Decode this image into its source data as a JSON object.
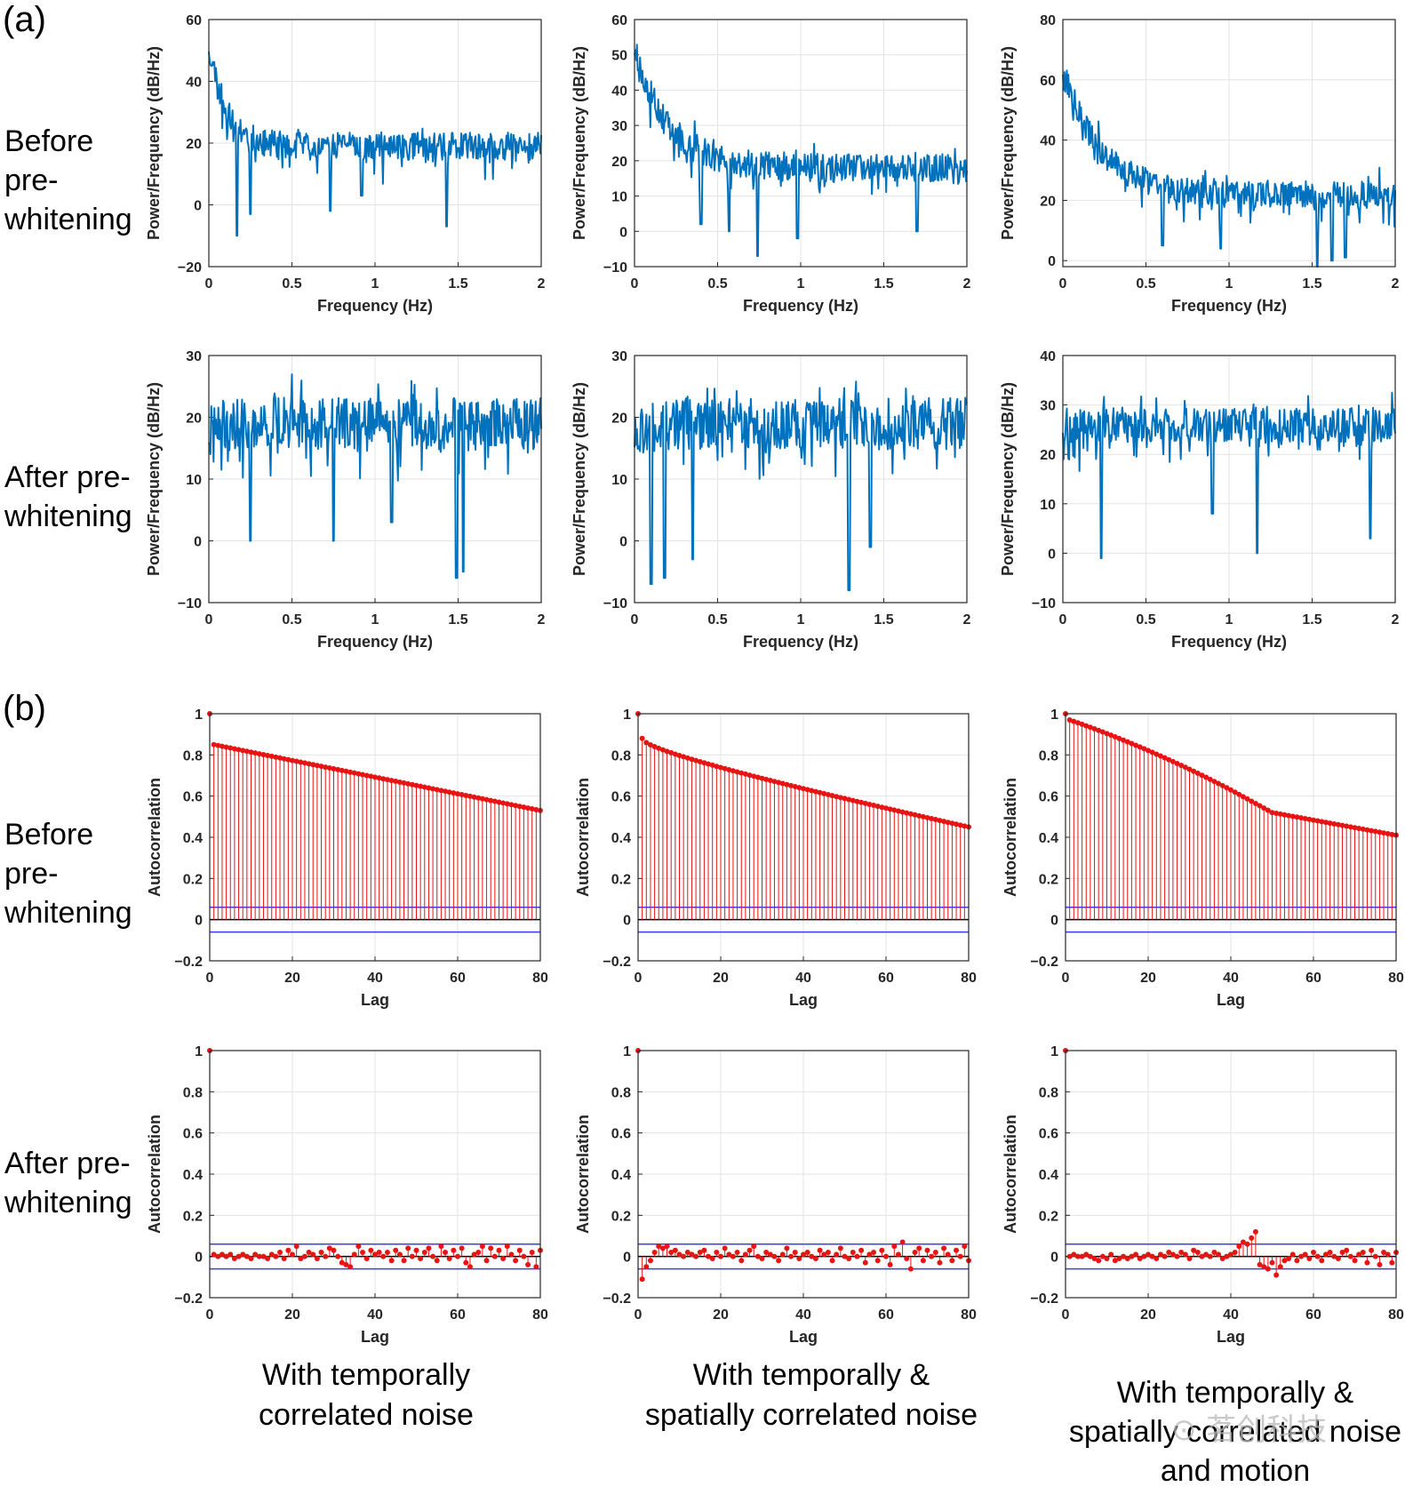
{
  "figure": {
    "panel_a": "(a)",
    "panel_b": "(b)",
    "row_labels": [
      [
        "Before",
        "pre-",
        "whitening"
      ],
      [
        "After pre-",
        "whitening"
      ],
      [
        "Before",
        "pre-",
        "whitening"
      ],
      [
        "After pre-",
        "whitening"
      ]
    ],
    "column_labels": [
      [
        "With temporally",
        "correlated noise"
      ],
      [
        "With temporally &",
        "spatially correlated noise"
      ],
      [
        "With temporally &",
        "spatially correlated noise",
        "and motion"
      ]
    ],
    "watermark": "⊙ 茗创科技"
  },
  "chart_data": [
    {
      "id": "a-r1-c1",
      "type": "line",
      "xlabel": "Frequency (Hz)",
      "ylabel": "Power/Frequency (dB/Hz)",
      "xlim": [
        0,
        2
      ],
      "ylim": [
        -20,
        60
      ],
      "xticks": [
        0,
        0.5,
        1,
        1.5,
        2
      ],
      "xtick_labels": [
        "0",
        "0.5",
        "1",
        "1.5",
        "2"
      ],
      "yticks": [
        -20,
        0,
        20,
        40,
        60
      ],
      "ytick_labels": [
        "−20",
        "0",
        "20",
        "40",
        "60"
      ],
      "start": 52,
      "floor": 19,
      "decay": 0.1,
      "noise": 4.5,
      "seed": 11,
      "dips": [
        [
          0.17,
          -10
        ],
        [
          0.25,
          -3
        ],
        [
          0.73,
          -2
        ],
        [
          1.43,
          -7
        ],
        [
          0.92,
          3
        ]
      ]
    },
    {
      "id": "a-r1-c2",
      "type": "line",
      "xlabel": "Frequency (Hz)",
      "ylabel": "Power/Frequency (dB/Hz)",
      "xlim": [
        0,
        2
      ],
      "ylim": [
        -10,
        60
      ],
      "xticks": [
        0,
        0.5,
        1,
        1.5,
        2
      ],
      "xtick_labels": [
        "0",
        "0.5",
        "1",
        "1.5",
        "2"
      ],
      "yticks": [
        -10,
        0,
        10,
        20,
        30,
        40,
        50,
        60
      ],
      "ytick_labels": [
        "−10",
        "0",
        "10",
        "20",
        "30",
        "40",
        "50",
        "60"
      ],
      "start": 52,
      "floor": 18,
      "decay": 0.2,
      "noise": 4,
      "seed": 23,
      "dips": [
        [
          0.74,
          -7
        ],
        [
          0.98,
          -2
        ],
        [
          0.57,
          0
        ],
        [
          1.7,
          0
        ],
        [
          0.4,
          2
        ]
      ]
    },
    {
      "id": "a-r1-c3",
      "type": "line",
      "xlabel": "Frequency (Hz)",
      "ylabel": "Power/Frequency (dB/Hz)",
      "xlim": [
        0,
        2
      ],
      "ylim": [
        -2,
        80
      ],
      "xticks": [
        0,
        0.5,
        1,
        1.5,
        2
      ],
      "xtick_labels": [
        "0",
        "0.5",
        "1",
        "1.5",
        "2"
      ],
      "yticks": [
        0,
        20,
        40,
        60,
        80
      ],
      "ytick_labels": [
        "0",
        "20",
        "40",
        "60",
        "80"
      ],
      "start": 64,
      "floor": 22,
      "decay": 0.22,
      "noise": 4.5,
      "seed": 37,
      "dips": [
        [
          1.53,
          -2
        ],
        [
          1.7,
          1
        ],
        [
          1.62,
          0
        ],
        [
          0.95,
          4
        ],
        [
          0.6,
          5
        ]
      ]
    },
    {
      "id": "a-r2-c1",
      "type": "line",
      "xlabel": "Frequency (Hz)",
      "ylabel": "Power/Frequency (dB/Hz)",
      "xlim": [
        0,
        2
      ],
      "ylim": [
        -10,
        30
      ],
      "xticks": [
        0,
        0.5,
        1,
        1.5,
        2
      ],
      "xtick_labels": [
        "0",
        "0.5",
        "1",
        "1.5",
        "2"
      ],
      "yticks": [
        -10,
        0,
        10,
        20,
        30
      ],
      "ytick_labels": [
        "−10",
        "0",
        "10",
        "20",
        "30"
      ],
      "start": 18,
      "floor": 19,
      "decay": 0.1,
      "noise": 4.2,
      "seed": 41,
      "dips": [
        [
          1.49,
          -6
        ],
        [
          1.53,
          -5
        ],
        [
          0.25,
          0
        ],
        [
          0.75,
          0
        ],
        [
          1.1,
          3
        ]
      ]
    },
    {
      "id": "a-r2-c2",
      "type": "line",
      "xlabel": "Frequency (Hz)",
      "ylabel": "Power/Frequency (dB/Hz)",
      "xlim": [
        0,
        2
      ],
      "ylim": [
        -10,
        30
      ],
      "xticks": [
        0,
        0.5,
        1,
        1.5,
        2
      ],
      "xtick_labels": [
        "0",
        "0.5",
        "1",
        "1.5",
        "2"
      ],
      "yticks": [
        -10,
        0,
        10,
        20,
        30
      ],
      "ytick_labels": [
        "−10",
        "0",
        "10",
        "20",
        "30"
      ],
      "start": 18,
      "floor": 19,
      "decay": 0.1,
      "noise": 4.2,
      "seed": 53,
      "dips": [
        [
          0.1,
          -7
        ],
        [
          0.18,
          -6
        ],
        [
          1.29,
          -8
        ],
        [
          0.35,
          -3
        ],
        [
          1.42,
          -1
        ]
      ]
    },
    {
      "id": "a-r2-c3",
      "type": "line",
      "xlabel": "Frequency (Hz)",
      "ylabel": "Power/Frequency (dB/Hz)",
      "xlim": [
        0,
        2
      ],
      "ylim": [
        -10,
        40
      ],
      "xticks": [
        0,
        0.5,
        1,
        1.5,
        2
      ],
      "xtick_labels": [
        "0",
        "0.5",
        "1",
        "1.5",
        "2"
      ],
      "yticks": [
        -10,
        0,
        10,
        20,
        30,
        40
      ],
      "ytick_labels": [
        "−10",
        "0",
        "10",
        "20",
        "30",
        "40"
      ],
      "start": 26,
      "floor": 26,
      "decay": 0.1,
      "noise": 3.5,
      "seed": 67,
      "dips": [
        [
          0.23,
          -1
        ],
        [
          1.17,
          0
        ],
        [
          1.85,
          3
        ],
        [
          0.9,
          8
        ]
      ]
    },
    {
      "id": "b-r1-c1",
      "type": "stem",
      "xlabel": "Lag",
      "ylabel": "Autocorrelation",
      "xlim": [
        0,
        80
      ],
      "ylim": [
        -0.2,
        1
      ],
      "xticks": [
        0,
        20,
        40,
        60,
        80
      ],
      "xtick_labels": [
        "0",
        "20",
        "40",
        "60",
        "80"
      ],
      "yticks": [
        -0.2,
        0,
        0.2,
        0.4,
        0.6,
        0.8,
        1
      ],
      "ytick_labels": [
        "−0.2",
        "0",
        "0.2",
        "0.4",
        "0.6",
        "0.8",
        "1"
      ],
      "bound": 0.06,
      "lag0": 1,
      "lag1": 0.85,
      "lag80": 0.53,
      "curve": 0,
      "knee": null
    },
    {
      "id": "b-r1-c2",
      "type": "stem",
      "xlabel": "Lag",
      "ylabel": "Autocorrelation",
      "xlim": [
        0,
        80
      ],
      "ylim": [
        -0.2,
        1
      ],
      "xticks": [
        0,
        20,
        40,
        60,
        80
      ],
      "xtick_labels": [
        "0",
        "20",
        "40",
        "60",
        "80"
      ],
      "yticks": [
        -0.2,
        0,
        0.2,
        0.4,
        0.6,
        0.8,
        1
      ],
      "ytick_labels": [
        "−0.2",
        "0",
        "0.2",
        "0.4",
        "0.6",
        "0.8",
        "1"
      ],
      "bound": 0.06,
      "lag0": 1,
      "lag1": 0.88,
      "lag80": 0.45,
      "curve": 0.35,
      "knee": null
    },
    {
      "id": "b-r1-c3",
      "type": "stem",
      "xlabel": "Lag",
      "ylabel": "Autocorrelation",
      "xlim": [
        0,
        80
      ],
      "ylim": [
        -0.2,
        1
      ],
      "xticks": [
        0,
        20,
        40,
        60,
        80
      ],
      "xtick_labels": [
        "0",
        "20",
        "40",
        "60",
        "80"
      ],
      "yticks": [
        -0.2,
        0,
        0.2,
        0.4,
        0.6,
        0.8,
        1
      ],
      "ytick_labels": [
        "−0.2",
        "0",
        "0.2",
        "0.4",
        "0.6",
        "0.8",
        "1"
      ],
      "bound": 0.06,
      "lag0": 1,
      "lag1": 0.97,
      "lag80": 0.41,
      "curve": 0.2,
      "knee": 48
    },
    {
      "id": "b-r2-c1",
      "type": "stem",
      "xlabel": "Lag",
      "ylabel": "Autocorrelation",
      "xlim": [
        0,
        80
      ],
      "ylim": [
        -0.2,
        1
      ],
      "xticks": [
        0,
        20,
        40,
        60,
        80
      ],
      "xtick_labels": [
        "0",
        "20",
        "40",
        "60",
        "80"
      ],
      "yticks": [
        -0.2,
        0,
        0.2,
        0.4,
        0.6,
        0.8,
        1
      ],
      "ytick_labels": [
        "−0.2",
        "0",
        "0.2",
        "0.4",
        "0.6",
        "0.8",
        "1"
      ],
      "bound": 0.06,
      "lag0": 1,
      "values": [
        0.01,
        0.0,
        0.01,
        0.0,
        0.01,
        -0.01,
        0.0,
        0.01,
        0.0,
        -0.01,
        0.01,
        0.0,
        0.0,
        -0.01,
        0.01,
        0.0,
        0.02,
        -0.01,
        0.03,
        0.01,
        0.05,
        -0.01,
        0.0,
        0.02,
        0.01,
        -0.01,
        0.02,
        0.0,
        0.04,
        0.03,
        0.0,
        -0.03,
        -0.04,
        -0.05,
        0.01,
        0.05,
        0.02,
        -0.01,
        0.03,
        0.01,
        0.02,
        0.0,
        0.02,
        -0.02,
        0.03,
        0.01,
        -0.02,
        0.04,
        0.0,
        0.03,
        -0.01,
        0.02,
        0.04,
        0.0,
        -0.02,
        0.05,
        0.02,
        -0.01,
        0.03,
        0.0,
        0.04,
        -0.03,
        -0.05,
        0.01,
        0.02,
        0.05,
        -0.02,
        0.04,
        0.0,
        0.03,
        -0.01,
        0.05,
        0.01,
        -0.02,
        0.03,
        0.0,
        -0.04,
        0.02,
        -0.05,
        0.03
      ]
    },
    {
      "id": "b-r2-c2",
      "type": "stem",
      "xlabel": "Lag",
      "ylabel": "Autocorrelation",
      "xlim": [
        0,
        80
      ],
      "ylim": [
        -0.2,
        1
      ],
      "xticks": [
        0,
        20,
        40,
        60,
        80
      ],
      "xtick_labels": [
        "0",
        "20",
        "40",
        "60",
        "80"
      ],
      "yticks": [
        -0.2,
        0,
        0.2,
        0.4,
        0.6,
        0.8,
        1
      ],
      "ytick_labels": [
        "−0.2",
        "0",
        "0.2",
        "0.4",
        "0.6",
        "0.8",
        "1"
      ],
      "bound": 0.06,
      "lag0": 1,
      "values": [
        -0.11,
        -0.05,
        -0.02,
        0.02,
        0.05,
        0.04,
        0.05,
        0.02,
        0.03,
        0.01,
        0.0,
        0.02,
        0.01,
        0.0,
        0.02,
        0.03,
        0.0,
        -0.01,
        0.02,
        0.0,
        0.04,
        0.01,
        0.0,
        0.02,
        -0.02,
        0.01,
        0.03,
        0.05,
        0.0,
        -0.01,
        0.02,
        0.01,
        0.0,
        -0.02,
        0.01,
        0.04,
        0.0,
        0.02,
        -0.01,
        0.01,
        0.02,
        0.0,
        -0.01,
        0.03,
        0.01,
        0.02,
        -0.02,
        0.01,
        0.04,
        0.0,
        -0.01,
        0.02,
        0.0,
        0.03,
        -0.03,
        0.01,
        0.02,
        -0.02,
        0.03,
        0.0,
        -0.04,
        0.05,
        0.01,
        0.07,
        -0.01,
        -0.06,
        0.02,
        0.04,
        -0.02,
        0.03,
        0.0,
        0.02,
        -0.03,
        0.04,
        0.01,
        -0.02,
        0.03,
        0.0,
        0.05,
        -0.02
      ]
    },
    {
      "id": "b-r2-c3",
      "type": "stem",
      "xlabel": "Lag",
      "ylabel": "Autocorrelation",
      "xlim": [
        0,
        80
      ],
      "ylim": [
        -0.2,
        1
      ],
      "xticks": [
        0,
        20,
        40,
        60,
        80
      ],
      "xtick_labels": [
        "0",
        "20",
        "40",
        "60",
        "80"
      ],
      "yticks": [
        -0.2,
        0,
        0.2,
        0.4,
        0.6,
        0.8,
        1
      ],
      "ytick_labels": [
        "−0.2",
        "0",
        "0.2",
        "0.4",
        "0.6",
        "0.8",
        "1"
      ],
      "bound": 0.06,
      "lag0": 1,
      "values": [
        0.0,
        0.01,
        0.0,
        0.0,
        0.01,
        0.0,
        -0.01,
        -0.02,
        0.0,
        -0.01,
        0.01,
        -0.02,
        -0.01,
        0.0,
        -0.01,
        0.0,
        0.01,
        -0.01,
        0.0,
        0.01,
        0.0,
        -0.01,
        0.01,
        0.0,
        0.02,
        0.01,
        0.0,
        0.02,
        0.01,
        -0.01,
        0.03,
        0.02,
        0.0,
        0.01,
        0.0,
        0.02,
        0.01,
        -0.01,
        0.0,
        0.01,
        0.02,
        0.05,
        0.07,
        0.06,
        0.09,
        0.12,
        -0.04,
        -0.05,
        -0.06,
        -0.03,
        -0.09,
        -0.05,
        -0.02,
        -0.01,
        0.01,
        -0.02,
        0.0,
        0.01,
        -0.01,
        0.02,
        0.0,
        -0.02,
        0.01,
        0.02,
        0.0,
        -0.01,
        0.02,
        0.03,
        0.0,
        -0.02,
        0.01,
        0.02,
        -0.03,
        0.03,
        0.0,
        -0.04,
        0.02,
        0.01,
        -0.03,
        0.02
      ]
    }
  ]
}
